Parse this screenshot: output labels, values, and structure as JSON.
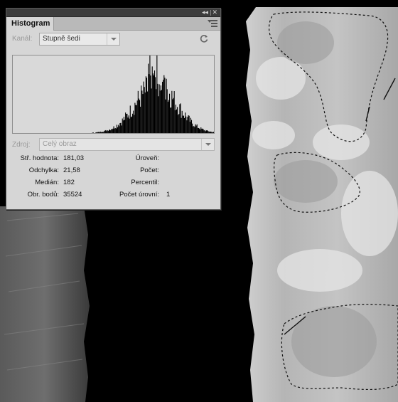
{
  "panel": {
    "tab_label": "Histogram",
    "collapse_glyph": "◂◂",
    "close_glyph": "✕"
  },
  "channel": {
    "label": "Kanál:",
    "value": "Stupně šedi"
  },
  "source": {
    "label": "Zdroj:",
    "value": "Celý obraz"
  },
  "stats": {
    "mean_label": "Stř. hodnota:",
    "mean_value": "181,03",
    "stddev_label": "Odchylka:",
    "stddev_value": "21,58",
    "median_label": "Medián:",
    "median_value": "182",
    "pixels_label": "Obr. bodů:",
    "pixels_value": "35524",
    "level_label": "Úroveň:",
    "level_value": "",
    "count_label": "Počet:",
    "count_value": "",
    "percentile_label": "Percentil:",
    "percentile_value": "",
    "cache_label": "Počet úrovní:",
    "cache_value": "1"
  },
  "colors": {
    "panel_bg": "#d6d6d6",
    "histogram_bars": "#000000",
    "canvas_background": "#000000"
  }
}
